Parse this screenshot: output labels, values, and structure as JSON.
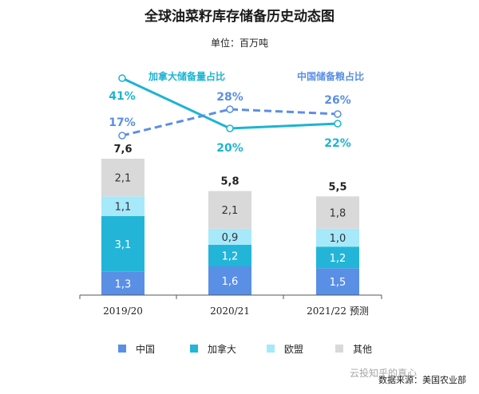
{
  "title": "全球油菜籽库存储备历史动态图",
  "unit": "单位：百万吨",
  "source": "数据来源：美国农业部",
  "watermark": "云投知乎的真心",
  "chart_data": {
    "type": "bar",
    "stacked": true,
    "categories": [
      "2019/20",
      "2020/21",
      "2021/22 预测"
    ],
    "series": [
      {
        "name": "中国",
        "color": "#5a8fe6",
        "values": [
          1.3,
          1.6,
          1.5
        ],
        "labels": [
          "1,3",
          "1,6",
          "1,5"
        ]
      },
      {
        "name": "加拿大",
        "color": "#23b5d8",
        "values": [
          3.1,
          1.2,
          1.2
        ],
        "labels": [
          "3,1",
          "1,2",
          "1,2"
        ]
      },
      {
        "name": "欧盟",
        "color": "#a6e9fb",
        "values": [
          1.1,
          0.9,
          1.0
        ],
        "labels": [
          "1,1",
          "0,9",
          "1,0"
        ]
      },
      {
        "name": "其他",
        "color": "#d9d9d9",
        "values": [
          2.1,
          2.1,
          1.8
        ],
        "labels": [
          "2,1",
          "2,1",
          "1,8"
        ]
      }
    ],
    "totals": [
      "7,6",
      "5,8",
      "5,5"
    ],
    "ylim": [
      0,
      8.5
    ],
    "lines": [
      {
        "name": "加拿大储备量占比",
        "color": "#1cb4d3",
        "style": "solid",
        "values": [
          41,
          20,
          22
        ],
        "labels": [
          "41%",
          "20%",
          "22%"
        ]
      },
      {
        "name": "中国储备粮占比",
        "color": "#5a8fe6",
        "style": "dashed",
        "values": [
          17,
          28,
          26
        ],
        "labels": [
          "17%",
          "28%",
          "26%"
        ]
      }
    ],
    "legend_position": "bottom"
  }
}
